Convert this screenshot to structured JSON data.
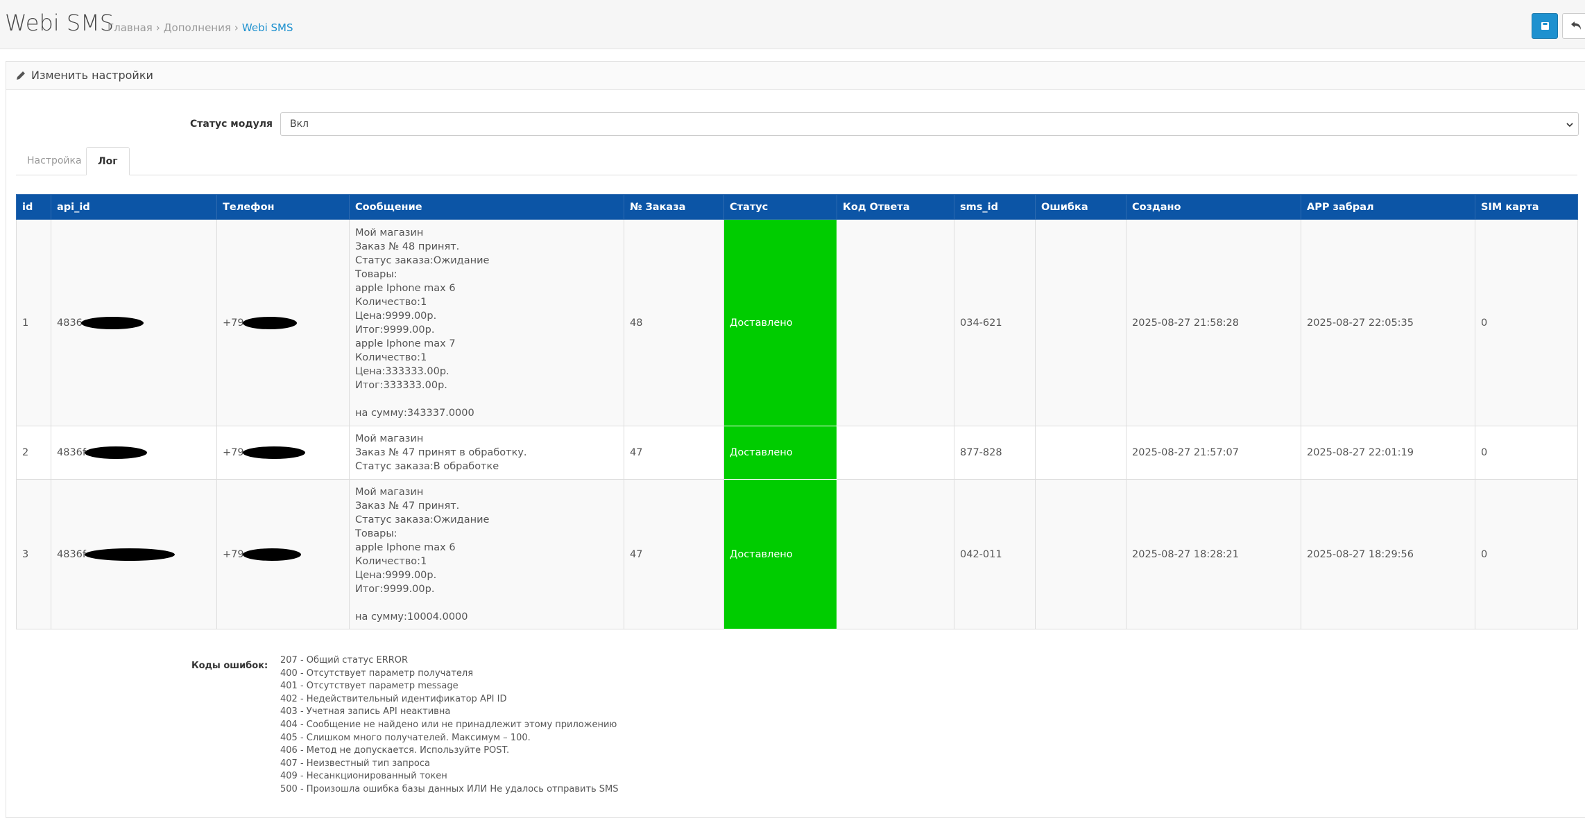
{
  "header": {
    "title": "Webi SMS",
    "breadcrumbs": [
      "Главная",
      "Дополнения",
      "Webi SMS"
    ]
  },
  "panel": {
    "heading": "Изменить настройки"
  },
  "form": {
    "status_label": "Статус модуля",
    "status_value": "Вкл"
  },
  "tabs": [
    "Настройка",
    "Лог"
  ],
  "table": {
    "columns": [
      "id",
      "api_id",
      "Телефон",
      "Сообщение",
      "№ Заказа",
      "Статус",
      "Код Ответа",
      "sms_id",
      "Ошибка",
      "Создано",
      "APP забрал",
      "SIM карта"
    ],
    "rows": [
      [
        "1",
        "4836",
        "+79",
        "Мой магазин\nЗаказ № 48 принят.\nСтатус заказа:Ожидание\nТовары:\napple Iphone max 6\nКоличество:1\nЦена:9999.00р.\nИтог:9999.00р.\napple Iphone max 7\nКоличество:1\nЦена:333333.00р.\nИтог:333333.00р.\n\nна сумму:343337.0000",
        "48",
        "Доставлено",
        "",
        "034-621",
        "",
        "2025-08-27 21:58:28",
        "2025-08-27 22:05:35",
        "0"
      ],
      [
        "2",
        "4836f",
        "+79",
        "Мой магазин\nЗаказ № 47 принят в обработку.\nСтатус заказа:В обработке",
        "47",
        "Доставлено",
        "",
        "877-828",
        "",
        "2025-08-27 21:57:07",
        "2025-08-27 22:01:19",
        "0"
      ],
      [
        "3",
        "4836f",
        "+79",
        "Мой магазин\nЗаказ № 47 принят.\nСтатус заказа:Ожидание\nТовары:\napple Iphone max 6\nКоличество:1\nЦена:9999.00р.\nИтог:9999.00р.\n\nна сумму:10004.0000",
        "47",
        "Доставлено",
        "",
        "042-011",
        "",
        "2025-08-27 18:28:21",
        "2025-08-27 18:29:56",
        "0"
      ]
    ]
  },
  "errors": {
    "label": "Коды ошибок:",
    "codes": [
      "207 - Общий статус ERROR",
      "400 - Отсутствует параметр получателя",
      "401 - Отсутствует параметр message",
      "402 - Недействительный идентификатор API ID",
      "403 - Учетная запись API неактивна",
      "404 - Сообщение не найдено или не принадлежит этому приложению",
      "405 - Слишком много получателей. Максимум – 100.",
      "406 - Метод не допускается. Используйте POST.",
      "407 - Неизвестный тип запроса",
      "409 - Несанкционированный токен",
      "500 - Произошла ошибка базы данных ИЛИ Не удалось отправить SMS"
    ]
  }
}
